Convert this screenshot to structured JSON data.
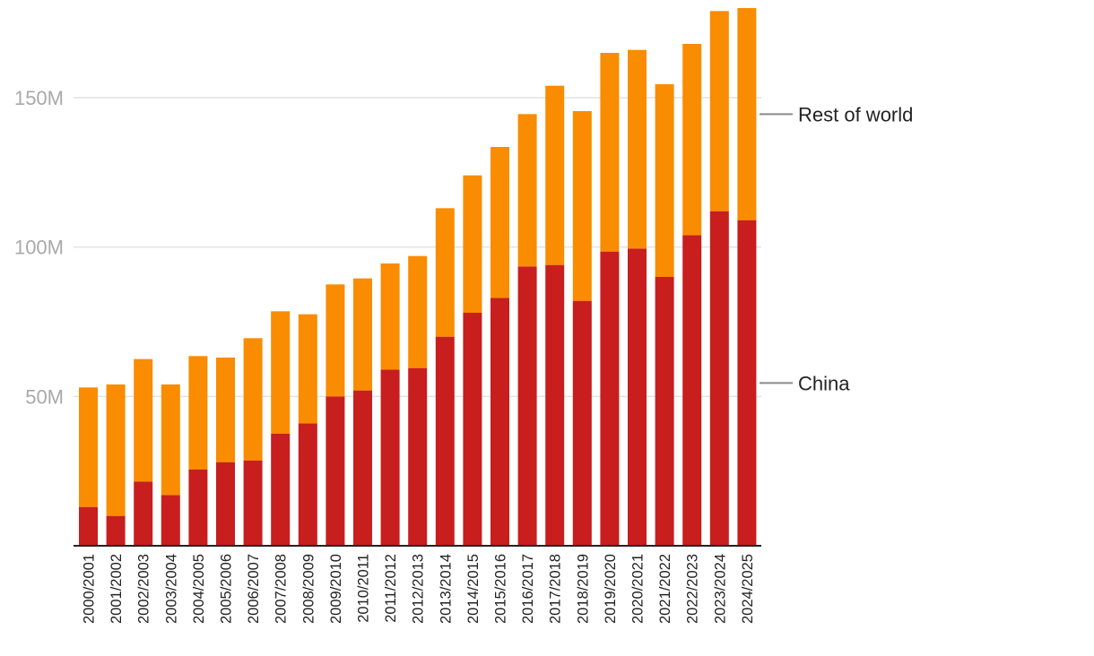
{
  "chart_data": {
    "type": "bar",
    "stacked": true,
    "title": "",
    "xlabel": "",
    "ylabel": "",
    "ylim": [
      0,
      180000000
    ],
    "yticks": [
      {
        "value": 50000000,
        "label": "50M"
      },
      {
        "value": 100000000,
        "label": "100M"
      },
      {
        "value": 150000000,
        "label": "150M"
      }
    ],
    "grid": true,
    "legend_position": "right",
    "categories": [
      "2000/2001",
      "2001/2002",
      "2002/2003",
      "2003/2004",
      "2004/2005",
      "2005/2006",
      "2006/2007",
      "2007/2008",
      "2008/2009",
      "2009/2010",
      "2010/2011",
      "2011/2012",
      "2012/2013",
      "2013/2014",
      "2014/2015",
      "2015/2016",
      "2016/2017",
      "2017/2018",
      "2018/2019",
      "2019/2020",
      "2020/2021",
      "2021/2022",
      "2022/2023",
      "2023/2024",
      "2024/2025"
    ],
    "series": [
      {
        "name": "China",
        "color": "#c81e1e",
        "values": [
          13000000,
          10000000,
          21500000,
          17000000,
          25500000,
          28000000,
          28500000,
          37500000,
          41000000,
          50000000,
          52000000,
          59000000,
          59500000,
          70000000,
          78000000,
          83000000,
          93500000,
          94000000,
          82000000,
          98500000,
          99500000,
          90000000,
          104000000,
          112000000,
          109000000
        ]
      },
      {
        "name": "Rest of world",
        "color": "#f98c00",
        "values": [
          40000000,
          44000000,
          41000000,
          37000000,
          38000000,
          35000000,
          41000000,
          41000000,
          36500000,
          37500000,
          37500000,
          35500000,
          37500000,
          43000000,
          46000000,
          50500000,
          51000000,
          60000000,
          63500000,
          66500000,
          66500000,
          64500000,
          64000000,
          67000000,
          71000000
        ]
      }
    ]
  }
}
